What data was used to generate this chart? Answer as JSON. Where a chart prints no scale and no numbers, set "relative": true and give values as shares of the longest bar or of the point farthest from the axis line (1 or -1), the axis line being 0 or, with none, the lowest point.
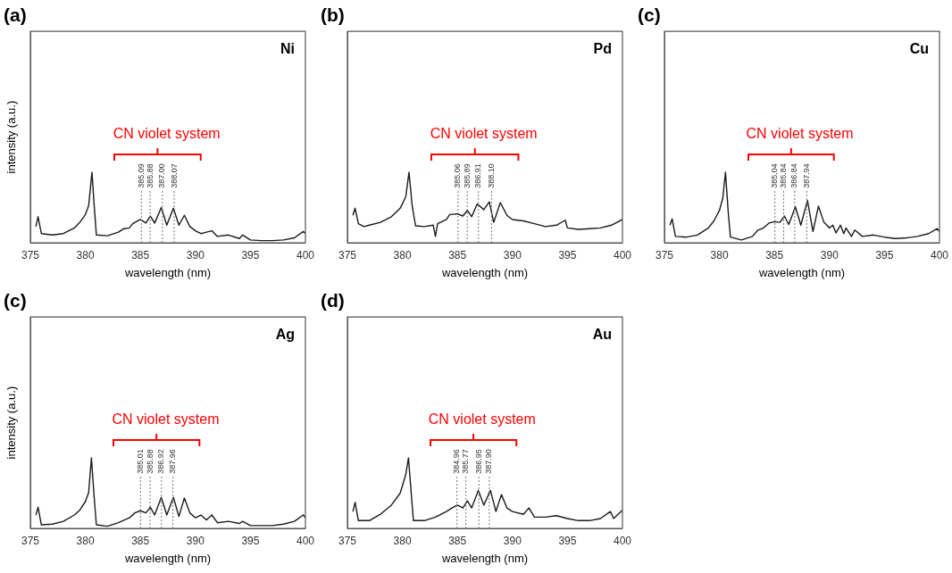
{
  "chart_data": [
    {
      "type": "line",
      "title": "(a)",
      "xlabel": "wavelength (nm)",
      "ylabel": "intensity (a.u.)",
      "relative": true,
      "tick_labels": "x",
      "xlim": [
        375,
        400
      ],
      "xticks": [
        375,
        380,
        385,
        390,
        395,
        400
      ],
      "annotations": [
        "Ni",
        "CN violet system"
      ],
      "x": [
        375.5,
        375.7,
        376,
        377,
        378,
        379,
        379.5,
        380,
        380.3,
        380.6,
        380.8,
        381,
        382,
        383,
        383.5,
        384,
        384.3,
        385,
        385.5,
        385.9,
        386.3,
        386.9,
        387.4,
        388,
        388.5,
        389,
        389.5,
        390,
        390.5,
        391,
        391.5,
        392,
        393,
        394,
        394.3,
        395,
        396,
        397,
        398,
        399,
        399.8,
        400
      ],
      "series": [
        {
          "color": "#1a1a1a",
          "values": [
            0.23,
            0.37,
            0.13,
            0.11,
            0.13,
            0.21,
            0.29,
            0.4,
            0.53,
            1,
            0.53,
            0.11,
            0.1,
            0.15,
            0.2,
            0.21,
            0.27,
            0.33,
            0.28,
            0.38,
            0.28,
            0.5,
            0.25,
            0.49,
            0.25,
            0.39,
            0.23,
            0.17,
            0.13,
            0.15,
            0.17,
            0.09,
            0.11,
            0.06,
            0.11,
            0.04,
            0.03,
            0.03,
            0.04,
            0.07,
            0.16,
            0.13
          ]
        }
      ],
      "ref_lines": [
        {
          "axis": "x",
          "value": 385.09,
          "label": "385.09",
          "line_style": "dotted"
        },
        {
          "axis": "x",
          "value": 385.88,
          "label": "385.88",
          "line_style": "dotted"
        },
        {
          "axis": "x",
          "value": 387.0,
          "label": "387.00",
          "line_style": "dotted"
        },
        {
          "axis": "x",
          "value": 388.07,
          "label": "388.07",
          "line_style": "dotted"
        }
      ]
    },
    {
      "type": "line",
      "title": "(b)",
      "xlabel": "wavelength (nm)",
      "relative": true,
      "tick_labels": "x",
      "xlim": [
        375,
        400
      ],
      "xticks": [
        375,
        380,
        385,
        390,
        395,
        400
      ],
      "annotations": [
        "Pd",
        "CN violet system"
      ],
      "x": [
        375.5,
        375.7,
        376,
        376.5,
        377,
        378,
        379,
        379.8,
        380.3,
        380.6,
        380.9,
        381.2,
        382,
        382.8,
        383,
        383.2,
        384,
        384.3,
        385,
        385.5,
        385.9,
        386.3,
        386.8,
        387.4,
        387.9,
        388.3,
        388.9,
        389.5,
        390,
        391,
        392,
        393,
        394,
        394.8,
        395,
        396,
        397,
        398,
        399,
        400
      ],
      "series": [
        {
          "color": "#1a1a1a",
          "values": [
            0.39,
            0.49,
            0.27,
            0.23,
            0.25,
            0.29,
            0.37,
            0.49,
            0.65,
            1,
            0.51,
            0.24,
            0.23,
            0.25,
            0.09,
            0.27,
            0.33,
            0.4,
            0.41,
            0.38,
            0.46,
            0.37,
            0.55,
            0.47,
            0.58,
            0.29,
            0.57,
            0.39,
            0.33,
            0.31,
            0.27,
            0.23,
            0.25,
            0.32,
            0.21,
            0.19,
            0.2,
            0.21,
            0.25,
            0.33
          ]
        }
      ],
      "ref_lines": [
        {
          "axis": "x",
          "value": 385.06,
          "label": "385.06",
          "line_style": "dotted"
        },
        {
          "axis": "x",
          "value": 385.89,
          "label": "385.89",
          "line_style": "dotted"
        },
        {
          "axis": "x",
          "value": 386.91,
          "label": "386.91",
          "line_style": "dotted"
        },
        {
          "axis": "x",
          "value": 388.1,
          "label": "388.10",
          "line_style": "dotted"
        }
      ]
    },
    {
      "type": "line",
      "title": "(c)",
      "xlabel": "wavelength (nm)",
      "relative": true,
      "tick_labels": "x",
      "xlim": [
        375,
        400
      ],
      "xticks": [
        375,
        380,
        385,
        390,
        395,
        400
      ],
      "annotations": [
        "Cu",
        "CN violet system"
      ],
      "x": [
        375.5,
        375.7,
        376,
        377,
        378,
        379,
        379.5,
        380,
        380.3,
        380.55,
        380.8,
        381,
        382,
        383,
        383.5,
        384,
        384.5,
        385,
        385.5,
        385.9,
        386.3,
        386.9,
        387.4,
        388,
        388.5,
        389,
        389.5,
        390,
        390.3,
        390.6,
        391,
        391.3,
        391.5,
        392,
        392.3,
        393,
        394,
        395,
        396,
        397,
        398,
        399,
        399.8,
        400
      ],
      "series": [
        {
          "color": "#1a1a1a",
          "values": [
            0.25,
            0.34,
            0.09,
            0.08,
            0.11,
            0.21,
            0.31,
            0.46,
            0.63,
            1,
            0.43,
            0.08,
            0.04,
            0.09,
            0.18,
            0.21,
            0.28,
            0.3,
            0.29,
            0.38,
            0.26,
            0.51,
            0.25,
            0.6,
            0.16,
            0.52,
            0.29,
            0.21,
            0.25,
            0.14,
            0.25,
            0.13,
            0.21,
            0.09,
            0.18,
            0.09,
            0.11,
            0.08,
            0.06,
            0.07,
            0.09,
            0.13,
            0.2,
            0.16
          ]
        }
      ],
      "ref_lines": [
        {
          "axis": "x",
          "value": 385.04,
          "label": "385.04",
          "line_style": "dotted"
        },
        {
          "axis": "x",
          "value": 385.84,
          "label": "385.84",
          "line_style": "dotted"
        },
        {
          "axis": "x",
          "value": 386.84,
          "label": "386.84",
          "line_style": "dotted"
        },
        {
          "axis": "x",
          "value": 387.94,
          "label": "387.94",
          "line_style": "dotted"
        }
      ]
    },
    {
      "type": "line",
      "title": "(c)",
      "xlabel": "wavelength (nm)",
      "ylabel": "intensity (a.u.)",
      "relative": true,
      "tick_labels": "x",
      "xlim": [
        375,
        400
      ],
      "xticks": [
        375,
        380,
        385,
        390,
        395,
        400
      ],
      "annotations": [
        "Ag",
        "CN violet system"
      ],
      "x": [
        375.5,
        375.7,
        376,
        377,
        378,
        379,
        379.5,
        380,
        380.3,
        380.55,
        380.8,
        381,
        382,
        383,
        384,
        384.5,
        385,
        385.5,
        385.9,
        386.3,
        386.9,
        387.4,
        388,
        388.5,
        389,
        389.5,
        390,
        390.5,
        391,
        391.5,
        392,
        393,
        394,
        394.3,
        395,
        396,
        397,
        398,
        399,
        399.8,
        400
      ],
      "series": [
        {
          "color": "#1a1a1a",
          "values": [
            0.19,
            0.3,
            0.05,
            0.06,
            0.1,
            0.19,
            0.26,
            0.38,
            0.51,
            1,
            0.44,
            0.05,
            0.03,
            0.08,
            0.15,
            0.22,
            0.25,
            0.22,
            0.3,
            0.19,
            0.44,
            0.19,
            0.44,
            0.17,
            0.43,
            0.22,
            0.15,
            0.19,
            0.12,
            0.19,
            0.08,
            0.1,
            0.07,
            0.1,
            0.04,
            0.04,
            0.04,
            0.06,
            0.1,
            0.19,
            0.15
          ]
        }
      ],
      "ref_lines": [
        {
          "axis": "x",
          "value": 385.01,
          "label": "385.01",
          "line_style": "dotted"
        },
        {
          "axis": "x",
          "value": 385.88,
          "label": "385.88",
          "line_style": "dotted"
        },
        {
          "axis": "x",
          "value": 386.92,
          "label": "386.92",
          "line_style": "dotted"
        },
        {
          "axis": "x",
          "value": 387.96,
          "label": "387.96",
          "line_style": "dotted"
        }
      ]
    },
    {
      "type": "line",
      "title": "(d)",
      "xlabel": "wavelength (nm)",
      "relative": true,
      "tick_labels": "x",
      "xlim": [
        375,
        400
      ],
      "xticks": [
        375,
        380,
        385,
        390,
        395,
        400
      ],
      "annotations": [
        "Au",
        "CN violet system"
      ],
      "x": [
        375.5,
        375.7,
        376,
        377,
        378,
        379,
        379.8,
        380.3,
        380.55,
        380.8,
        381,
        382,
        383,
        384,
        384.5,
        385,
        385.5,
        385.9,
        386.3,
        386.9,
        387.4,
        388,
        388.5,
        389,
        389.5,
        390,
        391,
        391.5,
        392,
        393,
        394,
        395,
        396,
        397,
        398,
        398.9,
        399.2,
        400
      ],
      "series": [
        {
          "color": "#1a1a1a",
          "values": [
            0.24,
            0.37,
            0.11,
            0.11,
            0.2,
            0.33,
            0.5,
            0.76,
            1,
            0.5,
            0.11,
            0.11,
            0.16,
            0.24,
            0.29,
            0.33,
            0.29,
            0.39,
            0.29,
            0.54,
            0.33,
            0.54,
            0.24,
            0.48,
            0.29,
            0.24,
            0.2,
            0.29,
            0.16,
            0.16,
            0.18,
            0.14,
            0.11,
            0.11,
            0.14,
            0.24,
            0.14,
            0.26
          ]
        }
      ],
      "ref_lines": [
        {
          "axis": "x",
          "value": 384.96,
          "label": "384.96",
          "line_style": "dotted"
        },
        {
          "axis": "x",
          "value": 385.77,
          "label": "385.77",
          "line_style": "dotted"
        },
        {
          "axis": "x",
          "value": 386.95,
          "label": "386.95",
          "line_style": "dotted"
        },
        {
          "axis": "x",
          "value": 387.9,
          "label": "387.90",
          "line_style": "dotted"
        }
      ]
    }
  ]
}
